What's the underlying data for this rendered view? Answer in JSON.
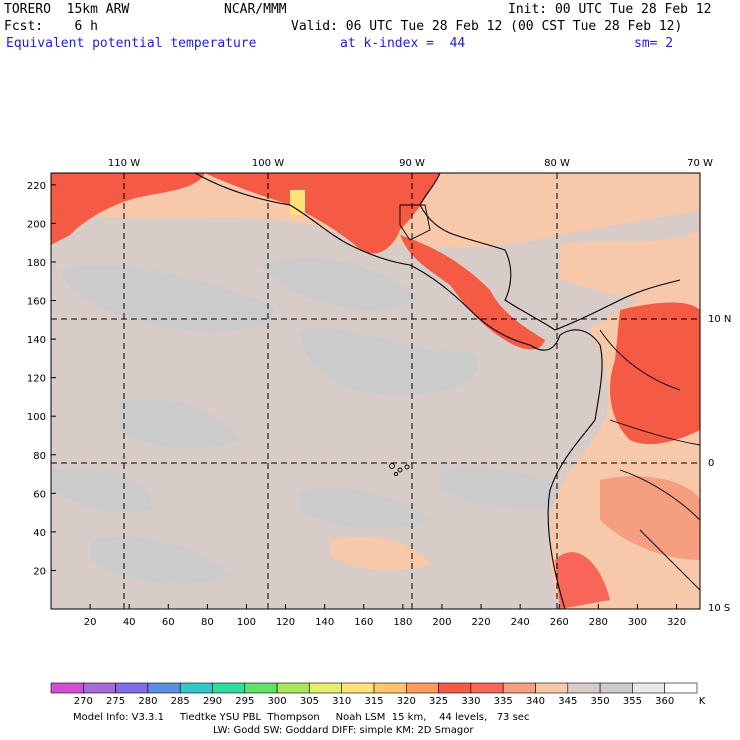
{
  "header": {
    "model": "TORERO  15km ARW",
    "center": "NCAR/MMM",
    "init": "Init: 00 UTC Tue 28 Feb 12",
    "fcst": "Fcst:    6 h",
    "valid": "Valid: 06 UTC Tue 28 Feb 12 (00 CST Tue 28 Feb 12)",
    "field": "Equivalent potential temperature",
    "level": "at k-index =  44",
    "smooth": "sm= 2"
  },
  "map": {
    "top_lon_labels": [
      "110 W",
      "100 W",
      "90 W",
      "80 W",
      "70 W"
    ],
    "right_lat_labels": [
      "10 N",
      "0",
      "10 S"
    ],
    "left_y_ticks": [
      "220",
      "200",
      "180",
      "160",
      "140",
      "120",
      "100",
      "80",
      "60",
      "40",
      "20"
    ],
    "bottom_x_ticks": [
      "20",
      "40",
      "60",
      "80",
      "100",
      "120",
      "140",
      "160",
      "180",
      "200",
      "220",
      "240",
      "260",
      "280",
      "300",
      "320"
    ]
  },
  "colorbar": {
    "unit": "K",
    "labels": [
      "270",
      "275",
      "280",
      "285",
      "290",
      "295",
      "300",
      "305",
      "310",
      "315",
      "320",
      "325",
      "330",
      "335",
      "340",
      "345",
      "350",
      "355",
      "360"
    ],
    "colors": [
      "#d24fd2",
      "#a86ad6",
      "#7f6be8",
      "#5c8ee0",
      "#33c8c8",
      "#2fdca0",
      "#62e06a",
      "#a6e65a",
      "#e6f06a",
      "#ffe27a",
      "#ffc46e",
      "#ff9a5c",
      "#f45a44",
      "#f8665a",
      "#f59e80",
      "#f7c8aa",
      "#d8ccc8",
      "#cccccc",
      "#e8e8e8",
      "#ffffff"
    ]
  },
  "footer": {
    "line1": "Model Info: V3.3.1     Tiedtke YSU PBL  Thompson     Noah LSM  15 km,    44 levels,   73 sec",
    "line2": "LW: Godd SW: Goddard DIFF: simple KM: 2D Smagor"
  }
}
